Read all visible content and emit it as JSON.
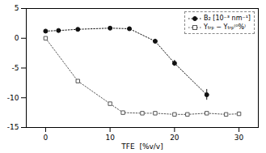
{
  "chart_data": {
    "type": "line",
    "xlabel": "TFE  [%v/v]",
    "xlim": [
      -3,
      33
    ],
    "ylim": [
      -15,
      5
    ],
    "xticks": [
      0,
      10,
      20,
      30
    ],
    "yticks": [
      -15,
      -10,
      -5,
      0,
      5
    ],
    "grid": false,
    "legend": "upper right",
    "series": [
      {
        "name": "B₂ [10⁻³ nm⁻¹]",
        "color": "#111111",
        "marker": "circle",
        "line_style": "dotted",
        "x": [
          0,
          2,
          5,
          10,
          13,
          17,
          20,
          25
        ],
        "values": [
          1.2,
          1.3,
          1.5,
          1.7,
          1.6,
          -0.5,
          -4.2,
          -9.5
        ],
        "errors": [
          0.0,
          0.0,
          0.0,
          0.0,
          0.25,
          0.35,
          0.5,
          0.9
        ]
      },
      {
        "name": "Yₜᵣₚ − Yₜᵣₚ⁽⁰%⁾",
        "color": "#555555",
        "marker": "square_open",
        "line_style": "dotted",
        "x": [
          0,
          5,
          10,
          12,
          15,
          17,
          20,
          22,
          25,
          28,
          30
        ],
        "values": [
          0.0,
          -7.2,
          -11.0,
          -12.5,
          -12.6,
          -12.6,
          -12.8,
          -12.8,
          -12.6,
          -12.8,
          -12.7
        ]
      }
    ]
  }
}
